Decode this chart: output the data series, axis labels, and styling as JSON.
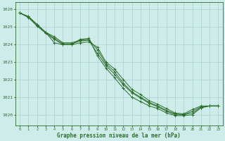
{
  "bg_color": "#ceecea",
  "grid_color": "#aed4d2",
  "line_color": "#2d6e2d",
  "xlabel": "Graphe pression niveau de la mer (hPa)",
  "xlabel_color": "#2d6e2d",
  "xlim": [
    -0.5,
    23.5
  ],
  "ylim": [
    1019.4,
    1026.4
  ],
  "yticks": [
    1020,
    1021,
    1022,
    1023,
    1024,
    1025,
    1026
  ],
  "xticks": [
    0,
    1,
    2,
    3,
    4,
    5,
    6,
    7,
    8,
    9,
    10,
    11,
    12,
    13,
    14,
    15,
    16,
    17,
    18,
    19,
    20,
    21,
    22,
    23
  ],
  "series": [
    [
      1025.8,
      1025.6,
      1025.15,
      1024.7,
      1024.1,
      1024.0,
      1024.0,
      1024.1,
      1024.15,
      1023.85,
      1023.0,
      1022.6,
      1022.0,
      1021.45,
      1021.15,
      1020.8,
      1020.6,
      1020.35,
      1020.1,
      1020.05,
      1020.3,
      1020.5,
      1020.5,
      1020.5
    ],
    [
      1025.8,
      1025.6,
      1025.15,
      1024.7,
      1024.35,
      1024.05,
      1024.05,
      1024.2,
      1024.25,
      1023.5,
      1022.8,
      1022.3,
      1021.7,
      1021.25,
      1020.95,
      1020.65,
      1020.45,
      1020.2,
      1020.0,
      1020.0,
      1020.1,
      1020.4,
      1020.5,
      1020.5
    ],
    [
      1025.8,
      1025.55,
      1025.05,
      1024.65,
      1024.3,
      1024.0,
      1024.0,
      1024.3,
      1024.35,
      1023.35,
      1022.65,
      1022.1,
      1021.5,
      1021.0,
      1020.75,
      1020.5,
      1020.35,
      1020.1,
      1019.95,
      1019.95,
      1020.0,
      1020.4,
      1020.5,
      1020.5
    ],
    [
      1025.8,
      1025.55,
      1025.1,
      1024.7,
      1024.45,
      1024.1,
      1024.1,
      1024.25,
      1024.3,
      1023.7,
      1022.9,
      1022.45,
      1021.8,
      1021.3,
      1021.0,
      1020.7,
      1020.5,
      1020.25,
      1020.05,
      1020.0,
      1020.2,
      1020.45,
      1020.5,
      1020.5
    ]
  ]
}
